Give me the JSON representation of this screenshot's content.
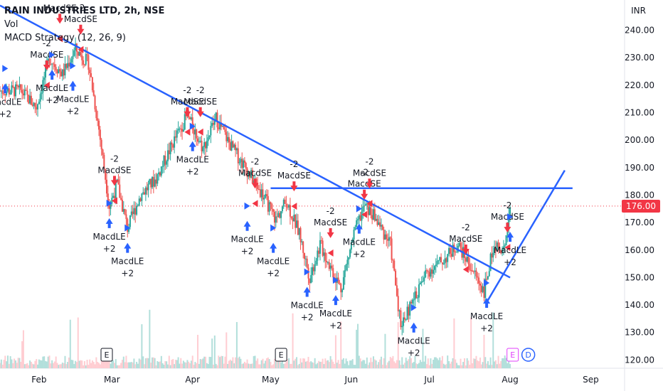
{
  "header": {
    "title": "RAIN INDUSTRIES LTD, 2h, NSE",
    "vol_label": "Vol",
    "strategy_label": "MACD Strategy (12, 26, 9)",
    "currency": "INR"
  },
  "last_price": "176.00",
  "colors": {
    "up": "#26a69a",
    "down": "#ef5350",
    "trendline": "#2962ff",
    "price_badge": "#f23645",
    "long_arrow": "#2962ff",
    "short_arrow": "#f23645"
  },
  "chart_data": {
    "type": "candlestick",
    "ylim": [
      117,
      251
    ],
    "y_ticks": [
      "120.00",
      "130.00",
      "140.00",
      "150.00",
      "160.00",
      "170.00",
      "180.00",
      "190.00",
      "200.00",
      "210.00",
      "220.00",
      "230.00",
      "240.00"
    ],
    "x_ticks": [
      "Feb",
      "Mar",
      "Apr",
      "May",
      "Jun",
      "Jul",
      "Aug",
      "Sep"
    ],
    "last_price": 176.0,
    "price_path": [
      {
        "date": "2023-01-25",
        "price": 218
      },
      {
        "date": "2023-01-31",
        "price": 212
      },
      {
        "date": "2023-02-05",
        "price": 230
      },
      {
        "date": "2023-02-10",
        "price": 224
      },
      {
        "date": "2023-02-15",
        "price": 233
      },
      {
        "date": "2023-02-20",
        "price": 228
      },
      {
        "date": "2023-02-24",
        "price": 204
      },
      {
        "date": "2023-02-28",
        "price": 176
      },
      {
        "date": "2023-03-03",
        "price": 184
      },
      {
        "date": "2023-03-07",
        "price": 168
      },
      {
        "date": "2023-03-12",
        "price": 180
      },
      {
        "date": "2023-03-18",
        "price": 186
      },
      {
        "date": "2023-03-25",
        "price": 200
      },
      {
        "date": "2023-03-30",
        "price": 209
      },
      {
        "date": "2023-04-05",
        "price": 197
      },
      {
        "date": "2023-04-10",
        "price": 208
      },
      {
        "date": "2023-04-15",
        "price": 199
      },
      {
        "date": "2023-04-22",
        "price": 189
      },
      {
        "date": "2023-04-28",
        "price": 180
      },
      {
        "date": "2023-05-03",
        "price": 171
      },
      {
        "date": "2023-05-07",
        "price": 178
      },
      {
        "date": "2023-05-12",
        "price": 166
      },
      {
        "date": "2023-05-16",
        "price": 150
      },
      {
        "date": "2023-05-20",
        "price": 162
      },
      {
        "date": "2023-05-24",
        "price": 154
      },
      {
        "date": "2023-05-28",
        "price": 146
      },
      {
        "date": "2023-06-02",
        "price": 166
      },
      {
        "date": "2023-06-06",
        "price": 176
      },
      {
        "date": "2023-06-10",
        "price": 172
      },
      {
        "date": "2023-06-16",
        "price": 162
      },
      {
        "date": "2023-06-20",
        "price": 133
      },
      {
        "date": "2023-06-24",
        "price": 140
      },
      {
        "date": "2023-06-30",
        "price": 152
      },
      {
        "date": "2023-07-06",
        "price": 156
      },
      {
        "date": "2023-07-12",
        "price": 162
      },
      {
        "date": "2023-07-18",
        "price": 152
      },
      {
        "date": "2023-07-22",
        "price": 145
      },
      {
        "date": "2023-07-26",
        "price": 163
      },
      {
        "date": "2023-07-29",
        "price": 158
      },
      {
        "date": "2023-08-01",
        "price": 176
      }
    ],
    "trendlines": [
      {
        "from": [
          "2023-01-17",
          249
        ],
        "to": [
          "2023-08-01",
          150
        ]
      },
      {
        "from": [
          "2023-05-01",
          182.5
        ],
        "to": [
          "2023-08-25",
          182.5
        ]
      },
      {
        "from": [
          "2023-07-23",
          141
        ],
        "to": [
          "2023-08-22",
          189
        ]
      }
    ],
    "signals": [
      {
        "date": "2023-01-19",
        "type": "long",
        "label": "MacdLE",
        "value": "+2",
        "price": 217
      },
      {
        "date": "2023-02-04",
        "type": "short",
        "label": "MacdSE",
        "value": "-2",
        "price": 229
      },
      {
        "date": "2023-02-06",
        "type": "long",
        "label": "MacdLE",
        "value": "+2",
        "price": 222
      },
      {
        "date": "2023-02-09",
        "type": "short",
        "label": "MacdSE",
        "value": "-2",
        "price": 246
      },
      {
        "date": "2023-02-14",
        "type": "long",
        "label": "MacdLE",
        "value": "+2",
        "price": 218
      },
      {
        "date": "2023-02-17",
        "type": "short",
        "label": "MacdSE",
        "value": "-2",
        "price": 242
      },
      {
        "date": "2023-03-02",
        "type": "short",
        "label": "MacdSE",
        "value": "-2",
        "price": 187
      },
      {
        "date": "2023-02-28",
        "type": "long",
        "label": "MacdLE",
        "value": "+2",
        "price": 168
      },
      {
        "date": "2023-03-07",
        "type": "long",
        "label": "MacdLE",
        "value": "+2",
        "price": 159
      },
      {
        "date": "2023-03-30",
        "type": "short",
        "label": "MacdSE",
        "value": "-2",
        "price": 212
      },
      {
        "date": "2023-04-04",
        "type": "short",
        "label": "MacdSE",
        "value": "-2",
        "price": 212
      },
      {
        "date": "2023-04-01",
        "type": "long",
        "label": "MacdLE",
        "value": "+2",
        "price": 196
      },
      {
        "date": "2023-04-25",
        "type": "short",
        "label": "MacdSE",
        "value": "-2",
        "price": 186
      },
      {
        "date": "2023-04-22",
        "type": "long",
        "label": "MacdLE",
        "value": "+2",
        "price": 167
      },
      {
        "date": "2023-05-02",
        "type": "long",
        "label": "MacdLE",
        "value": "+2",
        "price": 159
      },
      {
        "date": "2023-05-10",
        "type": "short",
        "label": "MacdSE",
        "value": "-2",
        "price": 185
      },
      {
        "date": "2023-05-15",
        "type": "long",
        "label": "MacdLE",
        "value": "+2",
        "price": 143
      },
      {
        "date": "2023-05-24",
        "type": "short",
        "label": "MacdSE",
        "value": "-2",
        "price": 168
      },
      {
        "date": "2023-05-26",
        "type": "long",
        "label": "MacdLE",
        "value": "+2",
        "price": 140
      },
      {
        "date": "2023-06-06",
        "type": "short",
        "label": "MacdSE",
        "value": "-2",
        "price": 182
      },
      {
        "date": "2023-06-08",
        "type": "short",
        "label": "MacdSE",
        "value": "-2",
        "price": 186
      },
      {
        "date": "2023-06-04",
        "type": "long",
        "label": "MacdLE",
        "value": "+2",
        "price": 166
      },
      {
        "date": "2023-06-25",
        "type": "long",
        "label": "MacdLE",
        "value": "+2",
        "price": 130
      },
      {
        "date": "2023-07-15",
        "type": "short",
        "label": "MacdSE",
        "value": "-2",
        "price": 162
      },
      {
        "date": "2023-07-23",
        "type": "long",
        "label": "MacdLE",
        "value": "+2",
        "price": 139
      },
      {
        "date": "2023-07-31",
        "type": "short",
        "label": "MacdSE",
        "value": "-2",
        "price": 170
      },
      {
        "date": "2023-08-01",
        "type": "long",
        "label": "MacdLE",
        "value": "+2",
        "price": 163
      }
    ],
    "events": [
      {
        "date": "2023-02-27",
        "label": "E",
        "type": "earnings"
      },
      {
        "date": "2023-05-05",
        "label": "E",
        "type": "earnings"
      },
      {
        "date": "2023-08-02",
        "label": "E",
        "type": "earnings-upcoming"
      },
      {
        "date": "2023-08-08",
        "label": "D",
        "type": "dividend"
      }
    ]
  }
}
